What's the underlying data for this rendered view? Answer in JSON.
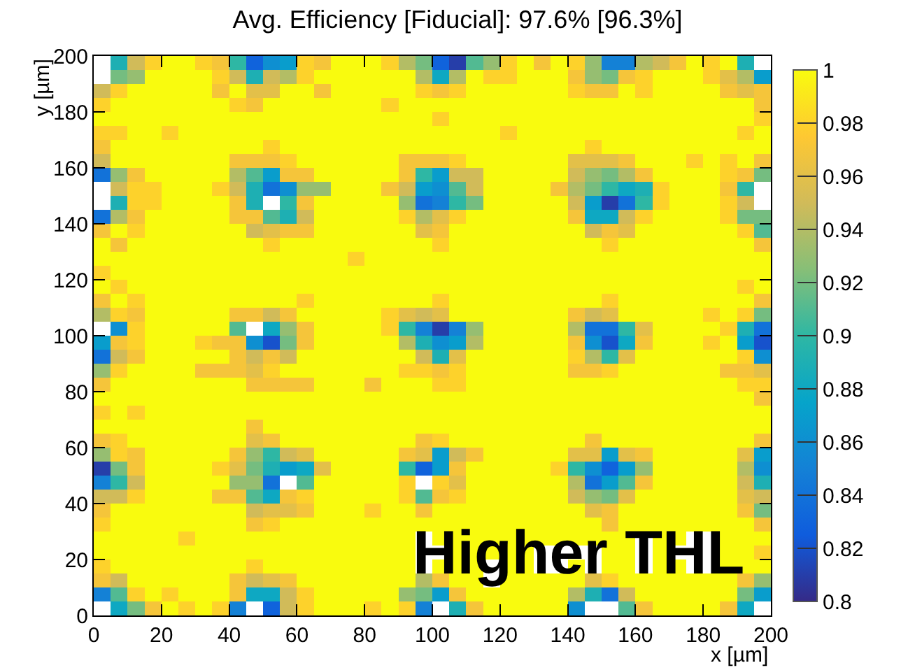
{
  "chart_data": {
    "type": "heatmap",
    "title": "Avg. Efficiency [Fiducial]: 97.6% [96.3%]",
    "xlabel": "x [µm]",
    "ylabel": "y [µm]",
    "xlim": [
      0,
      200
    ],
    "ylim": [
      0,
      200
    ],
    "xticks": [
      0,
      20,
      40,
      60,
      80,
      100,
      120,
      140,
      160,
      180,
      200
    ],
    "yticks": [
      0,
      20,
      40,
      60,
      80,
      100,
      120,
      140,
      160,
      180,
      200
    ],
    "clim": [
      0.8,
      1
    ],
    "cticks": [
      0.8,
      0.82,
      0.84,
      0.86,
      0.88,
      0.9,
      0.92,
      0.94,
      0.96,
      0.98,
      1
    ],
    "annotations": [
      "Higher THL"
    ],
    "cells": [
      [
        null,
        0.89,
        0.95,
        0.98,
        1,
        1,
        0.98,
        0.97,
        0.9,
        0.83,
        0.86,
        0.87,
        0.98,
        0.97,
        1,
        1,
        1,
        0.98,
        0.94,
        0.92,
        0.83,
        0.81,
        0.91,
        0.93,
        0.98,
        1,
        0.97,
        1,
        0.98,
        0.93,
        0.85,
        0.85,
        0.94,
        0.95,
        0.97,
        1,
        0.98,
        1,
        0.89,
        null
      ],
      [
        null,
        0.92,
        0.93,
        1,
        1,
        1,
        1,
        0.98,
        0.95,
        0.89,
        0.95,
        0.94,
        0.98,
        1,
        1,
        1,
        1,
        1,
        1,
        0.94,
        0.88,
        0.94,
        1,
        0.98,
        0.98,
        1,
        1,
        1,
        0.97,
        0.93,
        0.92,
        0.97,
        0.98,
        1,
        1,
        1,
        0.98,
        0.96,
        0.94,
        0.87
      ],
      [
        0.95,
        0.98,
        1,
        1,
        1,
        1,
        1,
        0.97,
        1,
        0.96,
        0.96,
        1,
        1,
        0.97,
        1,
        1,
        1,
        1,
        1,
        0.98,
        0.97,
        0.98,
        1,
        1,
        1,
        1,
        1,
        1,
        0.98,
        0.97,
        0.97,
        1,
        0.98,
        1,
        1,
        1,
        1,
        0.97,
        0.96,
        0.97
      ],
      [
        0.98,
        1,
        1,
        1,
        1,
        1,
        1,
        1,
        0.98,
        0.97,
        1,
        1,
        1,
        1,
        1,
        1,
        1,
        0.98,
        1,
        1,
        1,
        1,
        1,
        1,
        1,
        1,
        1,
        1,
        1,
        1,
        1,
        1,
        1,
        1,
        1,
        1,
        1,
        1,
        1,
        0.97
      ],
      [
        1,
        1,
        1,
        1,
        1,
        1,
        1,
        1,
        1,
        1,
        1,
        1,
        1,
        1,
        1,
        1,
        1,
        1,
        1,
        1,
        0.98,
        1,
        1,
        1,
        1,
        1,
        1,
        1,
        1,
        1,
        1,
        1,
        1,
        1,
        1,
        1,
        1,
        1,
        1,
        0.98
      ],
      [
        0.98,
        0.98,
        1,
        1,
        0.98,
        1,
        1,
        1,
        1,
        1,
        1,
        1,
        1,
        1,
        1,
        1,
        1,
        1,
        1,
        1,
        1,
        1,
        1,
        1,
        0.98,
        1,
        1,
        1,
        1,
        1,
        1,
        1,
        1,
        1,
        1,
        1,
        1,
        1,
        0.98,
        1
      ],
      [
        0.97,
        1,
        1,
        1,
        1,
        1,
        1,
        1,
        1,
        1,
        0.98,
        1,
        1,
        1,
        1,
        1,
        1,
        1,
        1,
        1,
        1,
        1,
        1,
        1,
        1,
        1,
        1,
        1,
        1,
        0.98,
        1,
        1,
        1,
        1,
        1,
        1,
        1,
        1,
        1,
        1
      ],
      [
        0.95,
        1,
        1,
        1,
        1,
        1,
        1,
        1,
        0.97,
        0.97,
        0.97,
        0.98,
        1,
        1,
        1,
        1,
        1,
        1,
        0.97,
        0.97,
        0.97,
        0.98,
        1,
        1,
        1,
        1,
        1,
        1,
        0.96,
        0.96,
        0.96,
        0.97,
        1,
        1,
        1,
        0.98,
        1,
        0.98,
        1,
        0.97
      ],
      [
        0.84,
        0.93,
        0.97,
        1,
        1,
        1,
        1,
        1,
        0.94,
        0.91,
        0.87,
        0.97,
        0.97,
        1,
        1,
        1,
        1,
        1,
        0.97,
        0.9,
        0.87,
        0.95,
        0.95,
        1,
        1,
        1,
        1,
        1,
        0.95,
        0.93,
        0.92,
        0.94,
        0.97,
        1,
        1,
        1,
        1,
        0.98,
        0.97,
        0.92
      ],
      [
        null,
        0.95,
        0.98,
        0.98,
        1,
        1,
        1,
        0.98,
        0.95,
        0.89,
        0.84,
        0.86,
        0.93,
        0.93,
        1,
        1,
        1,
        0.97,
        0.95,
        0.87,
        0.86,
        0.91,
        0.95,
        1,
        1,
        1,
        1,
        0.97,
        0.94,
        0.92,
        0.9,
        0.88,
        0.89,
        0.98,
        1,
        1,
        1,
        0.97,
        0.9,
        null
      ],
      [
        null,
        0.89,
        0.98,
        0.98,
        1,
        1,
        1,
        1,
        0.97,
        0.89,
        null,
        0.9,
        0.97,
        1,
        1,
        1,
        1,
        1,
        0.93,
        0.84,
        0.85,
        0.9,
        0.92,
        1,
        1,
        1,
        1,
        1,
        0.95,
        0.87,
        0.81,
        0.84,
        0.9,
        0.98,
        1,
        1,
        1,
        0.98,
        0.95,
        null
      ],
      [
        0.84,
        0.94,
        0.97,
        1,
        1,
        1,
        1,
        1,
        0.97,
        0.97,
        0.91,
        0.89,
        0.95,
        1,
        1,
        1,
        1,
        1,
        0.98,
        0.94,
        0.96,
        0.98,
        1,
        1,
        1,
        1,
        1,
        1,
        0.97,
        0.88,
        0.88,
        0.95,
        0.98,
        1,
        1,
        1,
        1,
        0.98,
        0.92,
        0.92
      ],
      [
        0.97,
        1,
        0.98,
        1,
        1,
        1,
        1,
        1,
        1,
        0.95,
        0.96,
        0.97,
        0.97,
        1,
        1,
        1,
        1,
        1,
        1,
        0.96,
        0.97,
        1,
        1,
        1,
        1,
        1,
        1,
        1,
        1,
        0.95,
        0.97,
        0.96,
        1,
        1,
        1,
        1,
        1,
        1,
        0.98,
        0.91
      ],
      [
        1,
        0.97,
        1,
        1,
        1,
        1,
        1,
        1,
        1,
        1,
        0.98,
        1,
        1,
        1,
        1,
        1,
        1,
        1,
        1,
        1,
        0.98,
        1,
        1,
        1,
        1,
        1,
        1,
        1,
        1,
        1,
        0.98,
        1,
        1,
        1,
        1,
        1,
        1,
        1,
        1,
        0.97
      ],
      [
        1,
        1,
        1,
        1,
        1,
        1,
        1,
        1,
        1,
        1,
        1,
        1,
        1,
        1,
        1,
        0.98,
        1,
        1,
        1,
        1,
        1,
        1,
        1,
        1,
        1,
        1,
        1,
        1,
        1,
        1,
        1,
        1,
        1,
        1,
        1,
        1,
        1,
        1,
        1,
        1
      ],
      [
        0.98,
        1,
        1,
        1,
        1,
        1,
        1,
        1,
        1,
        1,
        1,
        1,
        1,
        1,
        1,
        1,
        1,
        1,
        1,
        1,
        1,
        1,
        1,
        1,
        1,
        1,
        1,
        1,
        1,
        1,
        1,
        1,
        1,
        1,
        1,
        1,
        1,
        1,
        1,
        1
      ],
      [
        1,
        0.98,
        1,
        1,
        1,
        1,
        1,
        1,
        1,
        1,
        1,
        1,
        1,
        1,
        1,
        1,
        1,
        1,
        1,
        1,
        1,
        1,
        1,
        1,
        1,
        1,
        1,
        1,
        1,
        1,
        1,
        1,
        1,
        1,
        1,
        1,
        1,
        1,
        0.98,
        1
      ],
      [
        0.97,
        1,
        0.98,
        1,
        1,
        1,
        1,
        1,
        1,
        1,
        1,
        1,
        0.98,
        1,
        1,
        1,
        1,
        1,
        1,
        1,
        0.98,
        1,
        1,
        1,
        1,
        1,
        1,
        1,
        1,
        1,
        0.98,
        1,
        1,
        1,
        1,
        1,
        1,
        1,
        1,
        0.97
      ],
      [
        0.94,
        0.98,
        0.97,
        1,
        1,
        1,
        1,
        1,
        0.97,
        0.97,
        0.95,
        0.97,
        1,
        1,
        1,
        1,
        1,
        0.98,
        0.96,
        0.95,
        0.96,
        1,
        1,
        1,
        1,
        1,
        1,
        1,
        0.97,
        0.95,
        0.96,
        1,
        1,
        1,
        1,
        1,
        0.98,
        1,
        0.98,
        0.92
      ],
      [
        null,
        0.86,
        0.98,
        1,
        1,
        1,
        1,
        1,
        0.91,
        null,
        0.88,
        0.93,
        0.97,
        1,
        1,
        1,
        1,
        0.98,
        0.9,
        0.85,
        0.81,
        0.85,
        0.93,
        1,
        1,
        1,
        1,
        1,
        0.94,
        0.84,
        0.84,
        0.9,
        0.96,
        1,
        1,
        1,
        1,
        0.98,
        0.89,
        0.84
      ],
      [
        0.87,
        0.97,
        0.98,
        1,
        1,
        1,
        0.98,
        0.97,
        0.97,
        0.86,
        0.82,
        0.92,
        0.97,
        1,
        1,
        1,
        1,
        1,
        0.94,
        0.89,
        0.86,
        0.87,
        0.94,
        1,
        1,
        1,
        1,
        1,
        0.97,
        0.86,
        0.82,
        0.88,
        0.97,
        1,
        1,
        1,
        0.98,
        1,
        0.87,
        0.82
      ],
      [
        0.84,
        0.95,
        0.97,
        1,
        1,
        1,
        1,
        1,
        0.97,
        0.95,
        0.97,
        0.95,
        1,
        1,
        1,
        1,
        1,
        1,
        1,
        0.95,
        0.89,
        0.96,
        1,
        1,
        1,
        1,
        1,
        1,
        0.98,
        0.94,
        0.9,
        0.96,
        1,
        1,
        1,
        1,
        1,
        1,
        0.98,
        0.86
      ],
      [
        0.93,
        0.98,
        1,
        1,
        1,
        1,
        0.97,
        0.97,
        0.97,
        0.96,
        0.98,
        1,
        1,
        1,
        1,
        1,
        1,
        1,
        0.98,
        0.98,
        0.97,
        0.98,
        1,
        1,
        1,
        1,
        1,
        1,
        0.97,
        0.97,
        0.98,
        1,
        1,
        1,
        1,
        1,
        1,
        0.97,
        0.97,
        0.96
      ],
      [
        0.97,
        1,
        1,
        1,
        1,
        1,
        1,
        1,
        1,
        0.97,
        0.97,
        0.97,
        0.97,
        1,
        1,
        1,
        0.97,
        1,
        1,
        1,
        0.98,
        0.98,
        1,
        1,
        1,
        1,
        1,
        1,
        1,
        1,
        1,
        1,
        1,
        1,
        1,
        1,
        1,
        1,
        0.98,
        0.98
      ],
      [
        1,
        1,
        1,
        1,
        1,
        1,
        1,
        1,
        1,
        1,
        1,
        1,
        1,
        1,
        1,
        1,
        1,
        1,
        1,
        1,
        1,
        1,
        1,
        1,
        1,
        1,
        1,
        1,
        1,
        1,
        1,
        1,
        1,
        1,
        1,
        1,
        1,
        1,
        1,
        0.97
      ],
      [
        0.98,
        1,
        0.98,
        1,
        1,
        1,
        1,
        1,
        1,
        1,
        1,
        1,
        1,
        1,
        1,
        1,
        1,
        1,
        1,
        1,
        1,
        1,
        1,
        1,
        1,
        1,
        1,
        1,
        1,
        1,
        1,
        1,
        1,
        1,
        1,
        1,
        1,
        1,
        1,
        1
      ],
      [
        1,
        1,
        1,
        1,
        1,
        1,
        1,
        1,
        1,
        0.97,
        1,
        1,
        1,
        1,
        1,
        1,
        1,
        1,
        1,
        1,
        1,
        1,
        1,
        1,
        1,
        1,
        1,
        1,
        1,
        1,
        1,
        1,
        1,
        1,
        1,
        1,
        1,
        1,
        1,
        1
      ],
      [
        0.97,
        0.98,
        1,
        1,
        1,
        1,
        1,
        1,
        1,
        0.96,
        0.97,
        1,
        1,
        1,
        1,
        1,
        1,
        1,
        1,
        0.97,
        0.98,
        1,
        1,
        1,
        1,
        1,
        1,
        1,
        1,
        0.97,
        1,
        1,
        1,
        1,
        1,
        1,
        1,
        1,
        1,
        0.97
      ],
      [
        0.93,
        0.98,
        0.97,
        1,
        1,
        1,
        1,
        1,
        0.97,
        0.93,
        0.9,
        0.95,
        0.96,
        1,
        1,
        1,
        1,
        1,
        0.97,
        0.96,
        0.87,
        0.95,
        0.97,
        1,
        1,
        1,
        1,
        1,
        0.96,
        0.96,
        0.87,
        0.96,
        0.97,
        1,
        1,
        1,
        1,
        1,
        0.96,
        0.87
      ],
      [
        0.81,
        0.92,
        0.97,
        1,
        1,
        1,
        1,
        0.98,
        0.96,
        0.92,
        0.89,
        0.87,
        0.88,
        0.96,
        1,
        1,
        1,
        1,
        0.9,
        0.83,
        0.87,
        0.97,
        1,
        1,
        1,
        1,
        1,
        0.98,
        0.9,
        0.86,
        0.83,
        0.87,
        0.93,
        1,
        1,
        1,
        1,
        1,
        0.94,
        0.86
      ],
      [
        0.85,
        0.9,
        0.95,
        1,
        1,
        1,
        1,
        1,
        0.93,
        0.93,
        0.84,
        null,
        0.91,
        1,
        1,
        1,
        1,
        1,
        0.98,
        null,
        0.98,
        0.96,
        1,
        1,
        1,
        1,
        1,
        1,
        0.94,
        0.84,
        0.87,
        0.91,
        0.97,
        1,
        1,
        1,
        1,
        1,
        0.95,
        0.89
      ],
      [
        0.95,
        0.95,
        0.98,
        1,
        1,
        1,
        1,
        0.97,
        0.97,
        0.91,
        0.88,
        0.97,
        0.98,
        1,
        1,
        1,
        1,
        1,
        0.98,
        0.91,
        0.97,
        0.98,
        1,
        1,
        1,
        1,
        1,
        1,
        0.95,
        0.93,
        0.92,
        0.96,
        1,
        1,
        1,
        1,
        1,
        1,
        0.96,
        0.95
      ],
      [
        0.97,
        1,
        1,
        1,
        1,
        1,
        1,
        1,
        1,
        0.95,
        0.96,
        0.96,
        0.97,
        1,
        1,
        1,
        0.98,
        1,
        1,
        0.97,
        1,
        1,
        1,
        1,
        1,
        1,
        1,
        1,
        1,
        0.96,
        0.97,
        1,
        1,
        1,
        1,
        1,
        1,
        1,
        0.97,
        0.92
      ],
      [
        0.98,
        1,
        1,
        1,
        1,
        1,
        1,
        1,
        1,
        0.97,
        0.98,
        1,
        1,
        1,
        1,
        1,
        1,
        1,
        1,
        1,
        1,
        1,
        1,
        1,
        1,
        1,
        1,
        1,
        1,
        1,
        0.97,
        1,
        1,
        1,
        1,
        1,
        1,
        1,
        1,
        0.97
      ],
      [
        1,
        1,
        1,
        1,
        1,
        0.98,
        1,
        1,
        1,
        1,
        1,
        1,
        1,
        1,
        1,
        1,
        1,
        1,
        1,
        null,
        1,
        1,
        1,
        1,
        1,
        1,
        1,
        1,
        1,
        1,
        1,
        1,
        null,
        1,
        1,
        null,
        null,
        1,
        1,
        1
      ],
      [
        1,
        1,
        1,
        1,
        1,
        1,
        1,
        1,
        1,
        1,
        1,
        1,
        1,
        1,
        1,
        1,
        1,
        1,
        1,
        null,
        null,
        1,
        1,
        1,
        1,
        1,
        null,
        null,
        null,
        null,
        1,
        1,
        null,
        1,
        null,
        null,
        null,
        1,
        1,
        0.98
      ],
      [
        0.98,
        1,
        1,
        1,
        1,
        1,
        1,
        1,
        1,
        0.98,
        1,
        1,
        1,
        1,
        1,
        1,
        1,
        1,
        1,
        null,
        1,
        1,
        1,
        null,
        1,
        1,
        null,
        null,
        1,
        null,
        1,
        1,
        null,
        1,
        1,
        null,
        null,
        1,
        1,
        1
      ],
      [
        0.97,
        0.95,
        1,
        1,
        1,
        1,
        1,
        1,
        0.97,
        0.95,
        0.96,
        0.97,
        1,
        1,
        1,
        1,
        1,
        1,
        1,
        0.94,
        0.97,
        1,
        1,
        null,
        1,
        1,
        1,
        1,
        1,
        0.96,
        0.98,
        1,
        1,
        1,
        1,
        1,
        1,
        1,
        0.97,
        0.93
      ],
      [
        0.85,
        0.91,
        0.98,
        1,
        0.98,
        1,
        1,
        1,
        0.97,
        0.88,
        0.88,
        0.95,
        0.98,
        1,
        1,
        1,
        1,
        1,
        0.93,
        0.92,
        0.87,
        0.97,
        1,
        1,
        1,
        1,
        1,
        1,
        0.94,
        0.89,
        0.84,
        0.95,
        1,
        1,
        1,
        1,
        1,
        1,
        0.92,
        0.87
      ],
      [
        null,
        0.88,
        0.92,
        0.97,
        1,
        0.98,
        1,
        0.98,
        0.85,
        null,
        0.83,
        0.95,
        0.98,
        1,
        1,
        1,
        0.98,
        1,
        0.98,
        0.85,
        null,
        0.89,
        0.97,
        1,
        1,
        1,
        1,
        1,
        0.86,
        null,
        null,
        0.91,
        0.97,
        1,
        1,
        1,
        1,
        0.97,
        0.88,
        null
      ]
    ]
  }
}
